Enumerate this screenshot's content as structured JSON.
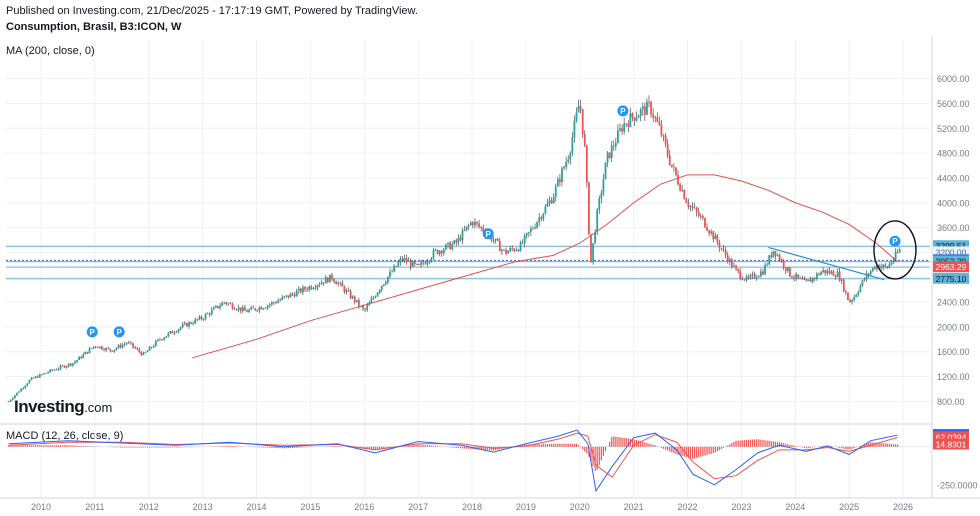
{
  "header": {
    "published": "Published on Investing.com, 21/Dec/2025 - 17:17:19 GMT, Powered by TradingView.",
    "symbol": "Consumption, Brasil, B3:ICON, W",
    "ma_label": "MA (200, close, 0)",
    "macd_label": "MACD (12, 26, close, 9)"
  },
  "logo": {
    "brand": "Investing",
    "domain": ".com"
  },
  "colors": {
    "up": "#26a69a",
    "down": "#ef5350",
    "candle_wick": "#2a2e39",
    "ma": "#e05050",
    "hline": "#5fb3d9",
    "macd_line": "#2962ff",
    "signal_line": "#ef5350",
    "hist_up": "#ef5350",
    "hist_down": "#ef5350",
    "trendline": "#2b8fc4",
    "grid": "#eef0f3",
    "axis": "#787b86",
    "marker": "#2196f3"
  },
  "chart_data": {
    "type": "line",
    "title": "Consumption, Brasil, B3:ICON, W",
    "x_ticks": [
      "2010",
      "2011",
      "2012",
      "2013",
      "2014",
      "2015",
      "2016",
      "2017",
      "2018",
      "2019",
      "2020",
      "2021",
      "2022",
      "2023",
      "2024",
      "2025",
      "2026"
    ],
    "xlim": [
      2009.35,
      2026.5
    ],
    "y_ticks": [
      800,
      1200,
      1600,
      2000,
      2400,
      2800,
      3200,
      3600,
      4000,
      4400,
      4800,
      5200,
      5600,
      6000
    ],
    "y_tick_labels": [
      "800.00",
      "1200.00",
      "1600.00",
      "2000.00",
      "2400.00",
      "2800.00",
      "3200.00",
      "3600.00",
      "4000.00",
      "4400.00",
      "4800.00",
      "5200.00",
      "5600.00",
      "6000.00"
    ],
    "ylim": [
      500,
      6300
    ],
    "price_series": {
      "name": "B3:ICON weekly close (approx.)",
      "x": [
        2009.4,
        2009.8,
        2010.2,
        2010.6,
        2011.0,
        2011.3,
        2011.6,
        2011.9,
        2012.2,
        2012.6,
        2013.0,
        2013.4,
        2013.8,
        2014.2,
        2014.6,
        2015.0,
        2015.4,
        2015.8,
        2016.0,
        2016.3,
        2016.7,
        2017.0,
        2017.3,
        2017.7,
        2018.0,
        2018.3,
        2018.6,
        2018.9,
        2019.2,
        2019.5,
        2019.8,
        2020.0,
        2020.1,
        2020.2,
        2020.3,
        2020.5,
        2020.8,
        2021.0,
        2021.3,
        2021.5,
        2021.7,
        2022.0,
        2022.3,
        2022.6,
        2022.9,
        2023.1,
        2023.4,
        2023.6,
        2023.9,
        2024.2,
        2024.5,
        2024.8,
        2025.0,
        2025.1,
        2025.3,
        2025.5,
        2025.7,
        2025.95
      ],
      "values": [
        800,
        1150,
        1300,
        1420,
        1700,
        1620,
        1750,
        1550,
        1800,
        2000,
        2150,
        2400,
        2250,
        2350,
        2500,
        2650,
        2800,
        2450,
        2250,
        2650,
        3100,
        2950,
        3200,
        3350,
        3700,
        3500,
        3200,
        3300,
        3700,
        4100,
        4800,
        5650,
        4800,
        3000,
        3700,
        4700,
        5250,
        5400,
        5550,
        5150,
        4600,
        4000,
        3700,
        3300,
        2900,
        2750,
        2900,
        3250,
        2850,
        2700,
        2900,
        2850,
        2400,
        2500,
        2800,
        3000,
        2950,
        3250
      ]
    },
    "ma_series": {
      "name": "MA (200, close, 0)",
      "x": [
        2012.8,
        2014.0,
        2015.0,
        2016.0,
        2017.0,
        2018.0,
        2018.8,
        2019.5,
        2020.0,
        2020.5,
        2021.0,
        2021.5,
        2022.0,
        2022.5,
        2023.0,
        2023.5,
        2024.0,
        2024.5,
        2025.0,
        2025.5,
        2025.9
      ],
      "values": [
        1500,
        1800,
        2100,
        2350,
        2600,
        2850,
        3050,
        3150,
        3350,
        3650,
        4000,
        4300,
        4450,
        4450,
        4350,
        4200,
        4000,
        3850,
        3650,
        3350,
        3050
      ]
    },
    "horizontal_levels": [
      {
        "value": 3299.51,
        "label": "3299.51",
        "label_bg": "#5fb3d9"
      },
      {
        "value": 3200.0,
        "label": "3200.00",
        "label_bg": "#e8f3fa"
      },
      {
        "value": 3071.62,
        "label": "3071.62",
        "label_bg": "#2962ff"
      },
      {
        "value": 3052.39,
        "label": "3052.39",
        "label_bg": "#5fb3d9"
      },
      {
        "value": 2963.29,
        "label": "2963.29",
        "label_bg": "#ef5350"
      },
      {
        "value": 2775.1,
        "label": "2775.10",
        "label_bg": "#5fb3d9"
      }
    ],
    "trendline": {
      "x": [
        2023.5,
        2025.65
      ],
      "values": [
        3280,
        2760
      ]
    },
    "markers": [
      {
        "x": 2010.95,
        "value": 1920,
        "label": "P"
      },
      {
        "x": 2011.45,
        "value": 1920,
        "label": "P"
      },
      {
        "x": 2018.3,
        "value": 3500,
        "label": "P"
      },
      {
        "x": 2020.8,
        "value": 5480,
        "label": "P"
      },
      {
        "x": 2025.85,
        "value": 3380,
        "label": "P"
      }
    ],
    "annotation_circle": {
      "x": 2025.85,
      "value": 3240,
      "note": "hand-drawn circle around latest price"
    },
    "macd": {
      "title": "MACD (12, 26, close, 9)",
      "ylim": [
        -330,
        130
      ],
      "y_tick": -250,
      "y_tick_label": "-250.0000",
      "values_labels": [
        {
          "value": 76.8695,
          "label": "76.8695",
          "bg": "#2962ff"
        },
        {
          "value": 62.0394,
          "label": "62.0394",
          "bg": "#ef5350"
        },
        {
          "value": 14.8301,
          "label": "14.8301",
          "bg": "#ef5350"
        }
      ],
      "x": [
        2009.4,
        2010.5,
        2011.5,
        2012.5,
        2013.5,
        2014.5,
        2015.5,
        2016.2,
        2017.0,
        2017.8,
        2018.4,
        2019.0,
        2019.6,
        2019.95,
        2020.15,
        2020.3,
        2020.6,
        2021.0,
        2021.4,
        2021.8,
        2022.1,
        2022.5,
        2022.9,
        2023.3,
        2023.7,
        2024.2,
        2024.6,
        2025.0,
        2025.4,
        2025.9
      ],
      "macd_values": [
        20,
        40,
        25,
        10,
        30,
        0,
        20,
        -40,
        35,
        10,
        -35,
        20,
        70,
        110,
        20,
        -290,
        -130,
        60,
        90,
        -20,
        -180,
        -250,
        -150,
        -40,
        10,
        -30,
        5,
        -50,
        40,
        77
      ],
      "signal_values": [
        10,
        30,
        30,
        15,
        25,
        10,
        15,
        -20,
        20,
        20,
        -10,
        5,
        50,
        90,
        70,
        -120,
        -200,
        10,
        80,
        30,
        -100,
        -210,
        -190,
        -90,
        -20,
        -20,
        -5,
        -30,
        10,
        62
      ],
      "hist_values": [
        10,
        10,
        -5,
        -5,
        5,
        -10,
        5,
        -20,
        15,
        -10,
        -25,
        15,
        20,
        20,
        -50,
        -170,
        70,
        50,
        10,
        -50,
        -80,
        -40,
        40,
        50,
        30,
        -10,
        10,
        -20,
        30,
        15
      ]
    }
  }
}
